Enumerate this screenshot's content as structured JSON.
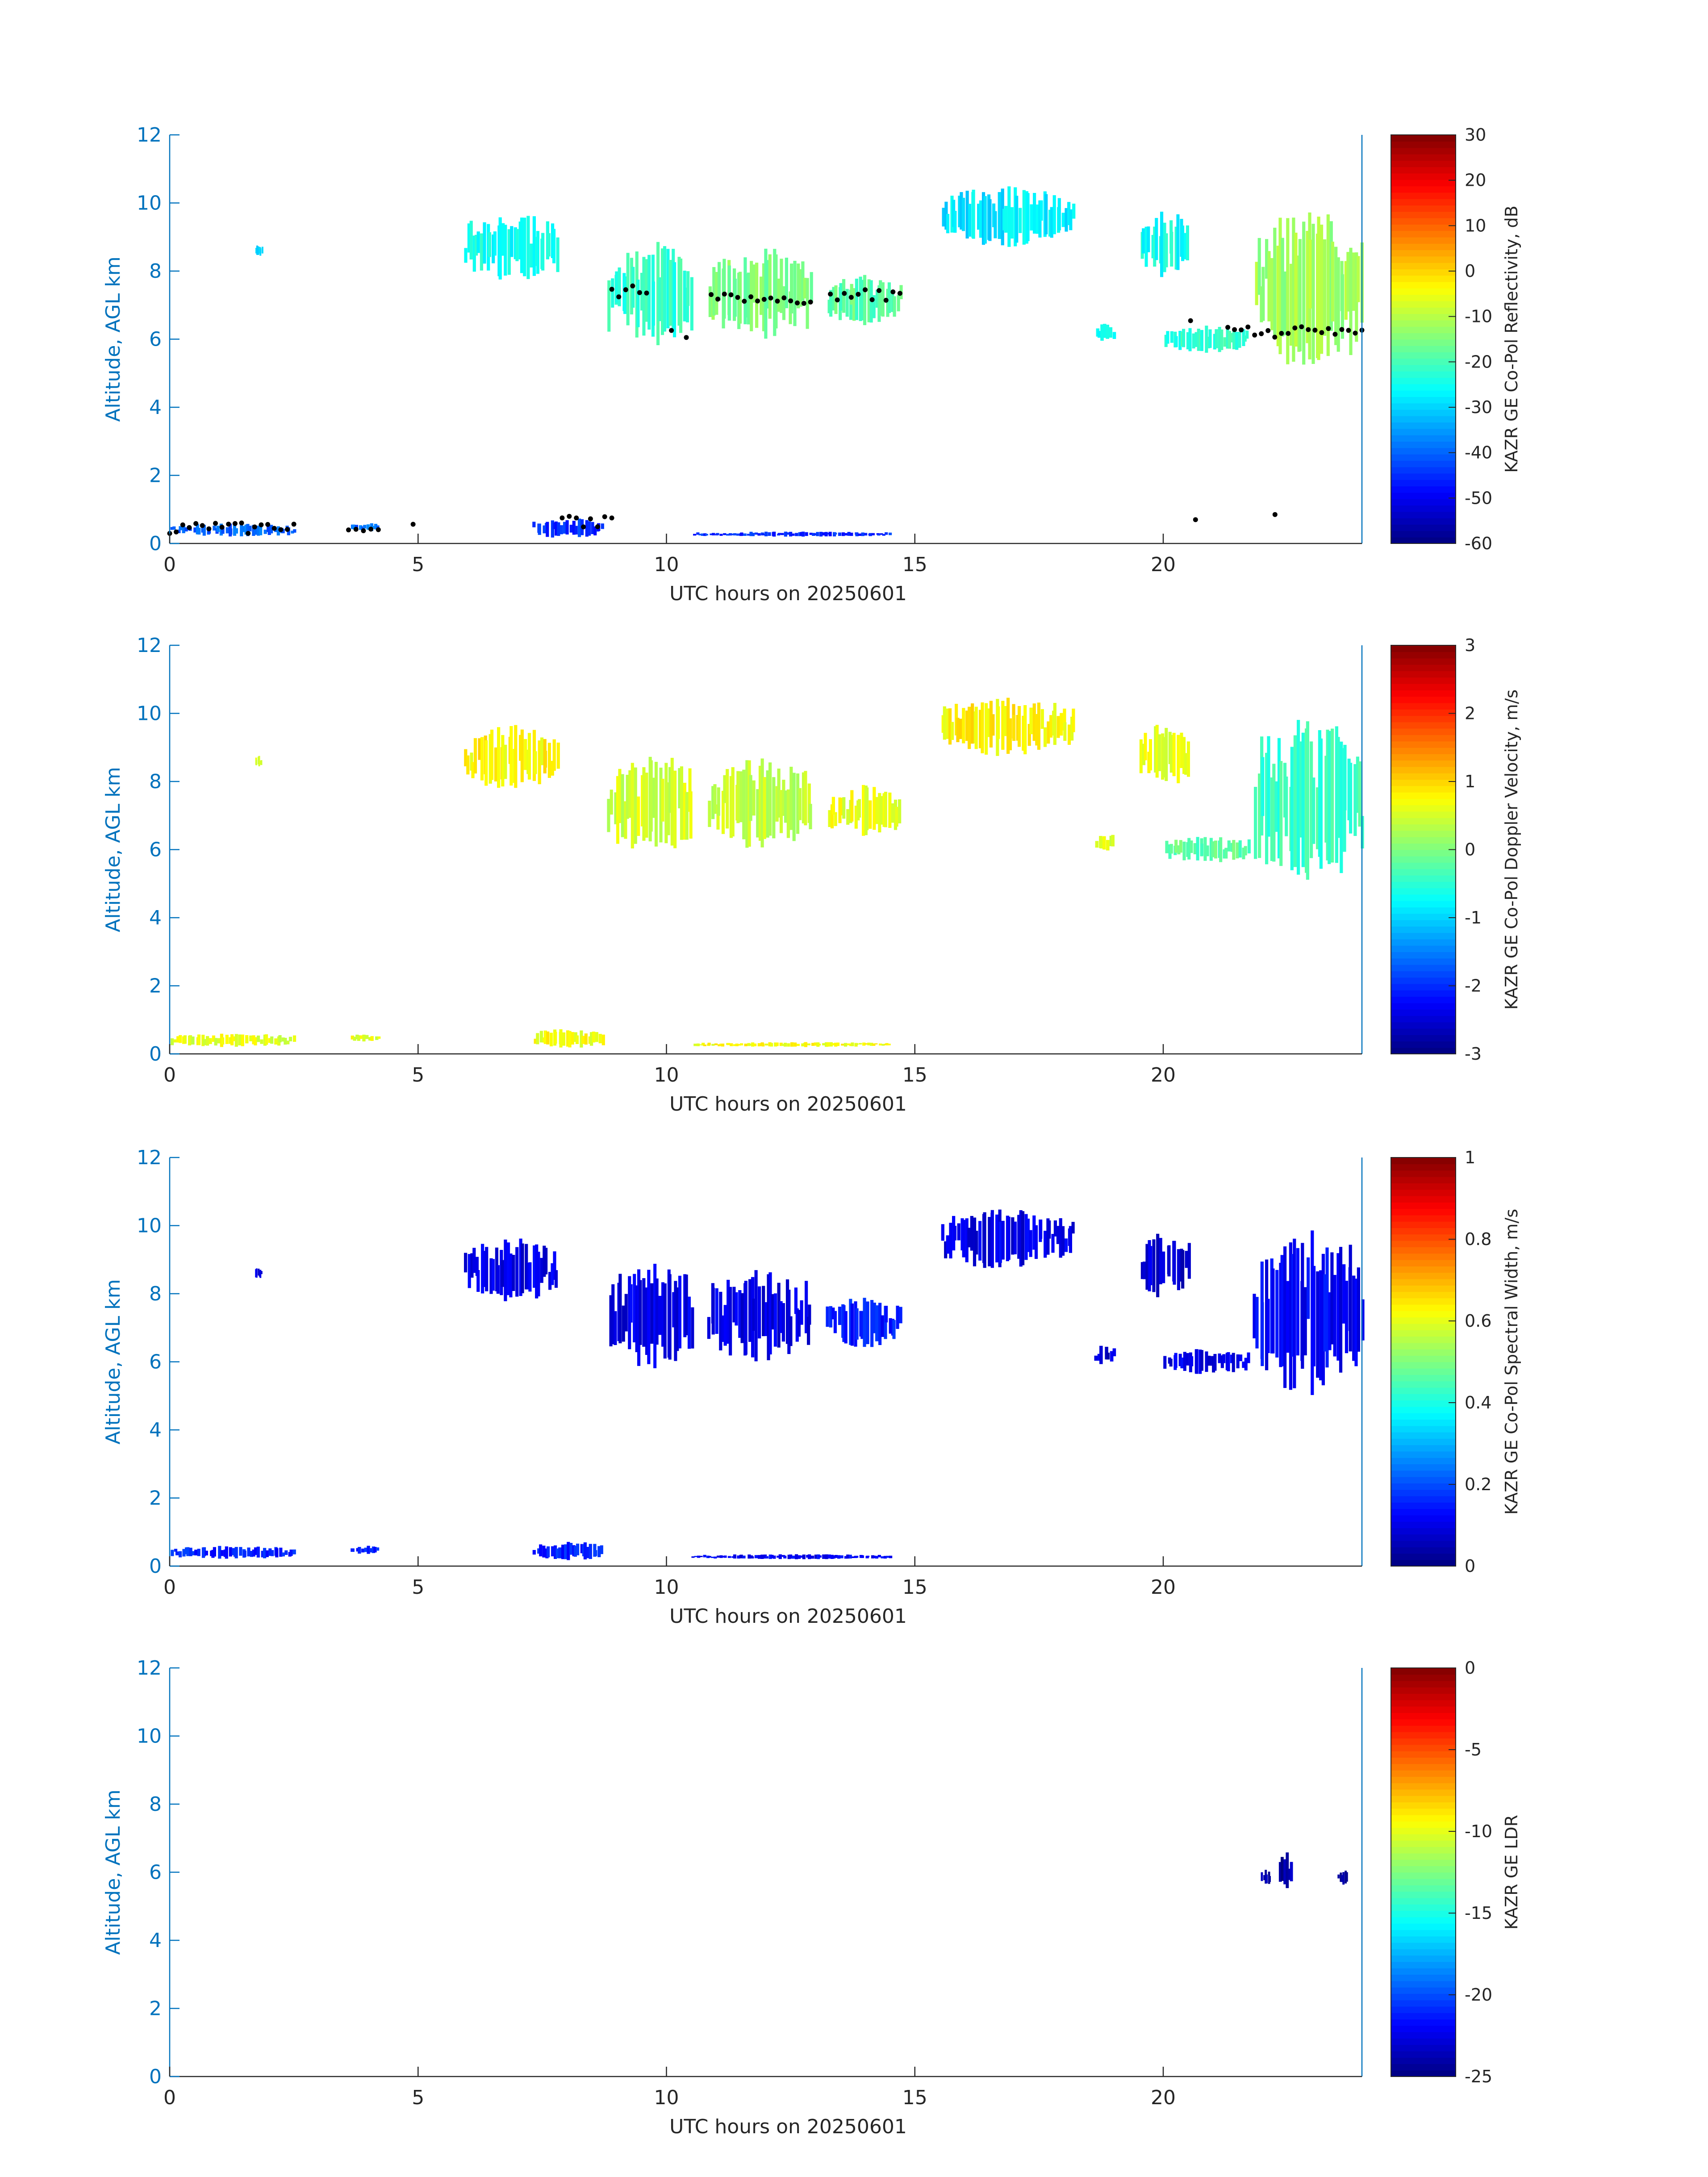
{
  "chart_data": [
    {
      "type": "heatmap",
      "title": "",
      "xlabel": "UTC hours on 20250601",
      "ylabel": "Altitude, AGL km",
      "xlim": [
        0,
        24
      ],
      "ylim": [
        0,
        12
      ],
      "xticks": [
        0,
        5,
        10,
        15,
        20
      ],
      "yticks": [
        0,
        2,
        4,
        6,
        8,
        10,
        12
      ],
      "colorbar": {
        "label": "KAZR GE Co-Pol Reflectivity, dB",
        "min": -60,
        "max": 30,
        "ticks": [
          -60,
          -50,
          -40,
          -30,
          -20,
          -10,
          0,
          10,
          20,
          30
        ],
        "colormap": "jet"
      },
      "echo_regions": [
        {
          "x": [
            0.0,
            2.5
          ],
          "y": [
            0.2,
            0.6
          ],
          "value": -40
        },
        {
          "x": [
            3.6,
            4.2
          ],
          "y": [
            0.35,
            0.6
          ],
          "value": -40
        },
        {
          "x": [
            7.3,
            8.7
          ],
          "y": [
            0.15,
            0.75
          ],
          "value": -45
        },
        {
          "x": [
            10.5,
            14.5
          ],
          "y": [
            0.2,
            0.35
          ],
          "value": -45
        },
        {
          "x": [
            5.9,
            7.8
          ],
          "y": [
            7.7,
            9.7
          ],
          "value": -25
        },
        {
          "x": [
            1.7,
            1.85
          ],
          "y": [
            8.4,
            8.8
          ],
          "value": -28
        },
        {
          "x": [
            8.8,
            10.5
          ],
          "y": [
            5.8,
            8.9
          ],
          "value": -22
        },
        {
          "x": [
            10.8,
            12.9
          ],
          "y": [
            6.0,
            8.7
          ],
          "value": -15
        },
        {
          "x": [
            13.2,
            14.7
          ],
          "y": [
            6.4,
            7.9
          ],
          "value": -18
        },
        {
          "x": [
            15.5,
            18.2
          ],
          "y": [
            8.7,
            10.5
          ],
          "value": -28
        },
        {
          "x": [
            18.6,
            19.0
          ],
          "y": [
            5.9,
            6.5
          ],
          "value": -25
        },
        {
          "x": [
            19.5,
            20.5
          ],
          "y": [
            7.8,
            9.8
          ],
          "value": -25
        },
        {
          "x": [
            20.0,
            21.7
          ],
          "y": [
            5.6,
            6.4
          ],
          "value": -22
        },
        {
          "x": [
            21.8,
            24.0
          ],
          "y": [
            5.0,
            9.9
          ],
          "value": -12
        }
      ],
      "cloud_base_points": [
        {
          "x": [
            0.0,
            2.5
          ],
          "y": 0.45
        },
        {
          "x": [
            3.6,
            4.2
          ],
          "y": 0.5
        },
        {
          "x": [
            4.9,
            4.9
          ],
          "y": 0.5
        },
        {
          "x": [
            7.9,
            8.9
          ],
          "y": 0.65
        },
        {
          "x": [
            8.9,
            9.6
          ],
          "y": 7.4
        },
        {
          "x": [
            10.1,
            10.4
          ],
          "y": 6.1
        },
        {
          "x": [
            10.9,
            12.9
          ],
          "y": 7.2
        },
        {
          "x": [
            13.3,
            14.7
          ],
          "y": 7.3
        },
        {
          "x": [
            20.6,
            20.7
          ],
          "y": 0.55
        },
        {
          "x": [
            20.5,
            20.6
          ],
          "y": 6.4
        },
        {
          "x": [
            21.3,
            24.0
          ],
          "y": 6.2
        },
        {
          "x": [
            22.2,
            22.3
          ],
          "y": 1.0
        }
      ]
    },
    {
      "type": "heatmap",
      "title": "",
      "xlabel": "UTC hours on 20250601",
      "ylabel": "Altitude, AGL km",
      "xlim": [
        0,
        24
      ],
      "ylim": [
        0,
        12
      ],
      "xticks": [
        0,
        5,
        10,
        15,
        20
      ],
      "yticks": [
        0,
        2,
        4,
        6,
        8,
        10,
        12
      ],
      "colorbar": {
        "label": "KAZR GE Co-Pol Doppler Velocity, m/s",
        "min": -3,
        "max": 3,
        "ticks": [
          -3,
          -2,
          -1,
          0,
          1,
          2,
          3
        ],
        "colormap": "jet"
      },
      "echo_regions": [
        {
          "x": [
            0.0,
            2.5
          ],
          "y": [
            0.2,
            0.6
          ],
          "value": 0.6
        },
        {
          "x": [
            3.6,
            4.2
          ],
          "y": [
            0.35,
            0.6
          ],
          "value": 0.6
        },
        {
          "x": [
            7.3,
            8.7
          ],
          "y": [
            0.15,
            0.75
          ],
          "value": 0.7
        },
        {
          "x": [
            10.5,
            14.5
          ],
          "y": [
            0.2,
            0.35
          ],
          "value": 0.7
        },
        {
          "x": [
            5.9,
            7.8
          ],
          "y": [
            7.7,
            9.7
          ],
          "value": 0.8
        },
        {
          "x": [
            1.7,
            1.85
          ],
          "y": [
            8.4,
            8.8
          ],
          "value": 0.6
        },
        {
          "x": [
            8.8,
            10.5
          ],
          "y": [
            5.8,
            8.9
          ],
          "value": 0.5
        },
        {
          "x": [
            10.8,
            12.9
          ],
          "y": [
            6.0,
            8.7
          ],
          "value": 0.4
        },
        {
          "x": [
            13.2,
            14.7
          ],
          "y": [
            6.4,
            7.9
          ],
          "value": 0.6
        },
        {
          "x": [
            15.5,
            18.2
          ],
          "y": [
            8.7,
            10.5
          ],
          "value": 0.8
        },
        {
          "x": [
            18.6,
            19.0
          ],
          "y": [
            5.9,
            6.5
          ],
          "value": 0.5
        },
        {
          "x": [
            19.5,
            20.5
          ],
          "y": [
            7.8,
            9.8
          ],
          "value": 0.6
        },
        {
          "x": [
            20.0,
            21.7
          ],
          "y": [
            5.6,
            6.4
          ],
          "value": -0.2
        },
        {
          "x": [
            21.8,
            24.0
          ],
          "y": [
            5.0,
            9.9
          ],
          "value": -0.4
        }
      ]
    },
    {
      "type": "heatmap",
      "title": "",
      "xlabel": "UTC hours on 20250601",
      "ylabel": "Altitude, AGL km",
      "xlim": [
        0,
        24
      ],
      "ylim": [
        0,
        12
      ],
      "xticks": [
        0,
        5,
        10,
        15,
        20
      ],
      "yticks": [
        0,
        2,
        4,
        6,
        8,
        10,
        12
      ],
      "colorbar": {
        "label": "KAZR GE Co-Pol Spectral Width, m/s",
        "min": 0,
        "max": 1,
        "ticks": [
          0,
          0.2,
          0.4,
          0.6,
          0.8,
          1
        ],
        "colormap": "jet"
      },
      "echo_regions": [
        {
          "x": [
            0.0,
            2.5
          ],
          "y": [
            0.2,
            0.6
          ],
          "value": 0.15
        },
        {
          "x": [
            3.6,
            4.2
          ],
          "y": [
            0.35,
            0.6
          ],
          "value": 0.15
        },
        {
          "x": [
            7.3,
            8.7
          ],
          "y": [
            0.15,
            0.75
          ],
          "value": 0.15
        },
        {
          "x": [
            10.5,
            14.5
          ],
          "y": [
            0.2,
            0.35
          ],
          "value": 0.12
        },
        {
          "x": [
            5.9,
            7.8
          ],
          "y": [
            7.7,
            9.7
          ],
          "value": 0.1
        },
        {
          "x": [
            1.7,
            1.85
          ],
          "y": [
            8.4,
            8.8
          ],
          "value": 0.1
        },
        {
          "x": [
            8.8,
            10.5
          ],
          "y": [
            5.8,
            8.9
          ],
          "value": 0.1
        },
        {
          "x": [
            10.8,
            12.9
          ],
          "y": [
            6.0,
            8.7
          ],
          "value": 0.1
        },
        {
          "x": [
            13.2,
            14.7
          ],
          "y": [
            6.4,
            7.9
          ],
          "value": 0.15
        },
        {
          "x": [
            15.5,
            18.2
          ],
          "y": [
            8.7,
            10.5
          ],
          "value": 0.1
        },
        {
          "x": [
            18.6,
            19.0
          ],
          "y": [
            5.9,
            6.5
          ],
          "value": 0.08
        },
        {
          "x": [
            19.5,
            20.5
          ],
          "y": [
            7.8,
            9.8
          ],
          "value": 0.08
        },
        {
          "x": [
            20.0,
            21.7
          ],
          "y": [
            5.6,
            6.4
          ],
          "value": 0.1
        },
        {
          "x": [
            21.8,
            24.0
          ],
          "y": [
            5.0,
            9.9
          ],
          "value": 0.12
        }
      ]
    },
    {
      "type": "heatmap",
      "title": "",
      "xlabel": "UTC hours on 20250601",
      "ylabel": "Altitude, AGL km",
      "xlim": [
        0,
        24
      ],
      "ylim": [
        0,
        12
      ],
      "xticks": [
        0,
        5,
        10,
        15,
        20
      ],
      "yticks": [
        0,
        2,
        4,
        6,
        8,
        10,
        12
      ],
      "colorbar": {
        "label": "KAZR GE LDR",
        "min": -25,
        "max": 0,
        "ticks": [
          -25,
          -20,
          -15,
          -10,
          -5,
          0
        ],
        "colormap": "jet"
      },
      "echo_regions": [
        {
          "x": [
            21.95,
            22.15
          ],
          "y": [
            5.6,
            6.1
          ],
          "value": -24
        },
        {
          "x": [
            22.3,
            22.6
          ],
          "y": [
            5.5,
            6.6
          ],
          "value": -24
        },
        {
          "x": [
            23.5,
            23.7
          ],
          "y": [
            5.6,
            6.1
          ],
          "value": -24
        }
      ]
    }
  ]
}
